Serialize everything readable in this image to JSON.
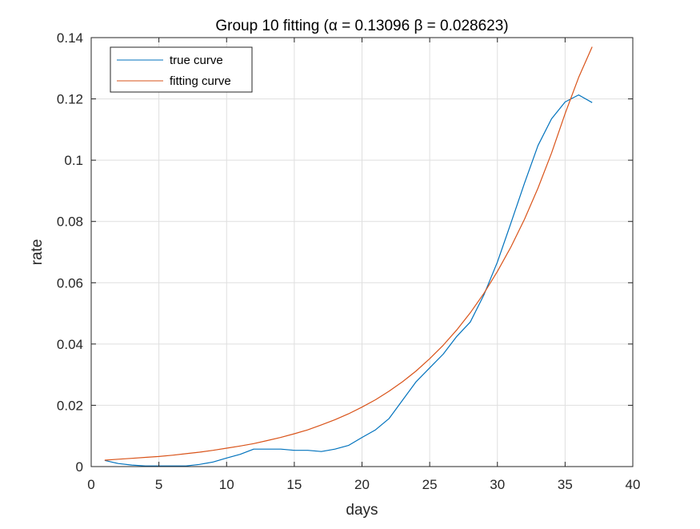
{
  "chart_data": {
    "type": "line",
    "title": "Group 10 fitting (α = 0.13096 β = 0.028623)",
    "xlabel": "days",
    "ylabel": "rate",
    "xlim": [
      0,
      40
    ],
    "ylim": [
      0,
      0.14
    ],
    "xticks": [
      0,
      5,
      10,
      15,
      20,
      25,
      30,
      35,
      40
    ],
    "yticks": [
      0,
      0.02,
      0.04,
      0.06,
      0.08,
      0.1,
      0.12,
      0.14
    ],
    "xtick_labels": [
      "0",
      "5",
      "10",
      "15",
      "20",
      "25",
      "30",
      "35",
      "40"
    ],
    "ytick_labels": [
      "0",
      "0.02",
      "0.04",
      "0.06",
      "0.08",
      "0.1",
      "0.12",
      "0.14"
    ],
    "grid": true,
    "legend": {
      "placement": "top-left"
    },
    "series": [
      {
        "name": "true curve",
        "color": "#0072BD",
        "x": [
          1,
          2,
          3,
          4,
          5,
          6,
          7,
          8,
          9,
          10,
          11,
          12,
          13,
          14,
          15,
          16,
          17,
          18,
          19,
          20,
          21,
          22,
          23,
          24,
          25,
          26,
          27,
          28,
          29,
          30,
          31,
          32,
          33,
          34,
          35,
          36,
          37
        ],
        "y": [
          0.002,
          0.001,
          0.0005,
          0.0002,
          0.0002,
          0.0002,
          0.0002,
          0.0007,
          0.0015,
          0.0028,
          0.004,
          0.0057,
          0.0057,
          0.0057,
          0.0053,
          0.0053,
          0.0049,
          0.0057,
          0.0069,
          0.0095,
          0.012,
          0.0157,
          0.0217,
          0.0277,
          0.0322,
          0.0367,
          0.0425,
          0.0472,
          0.056,
          0.0668,
          0.0795,
          0.0925,
          0.1048,
          0.1135,
          0.119,
          0.1213,
          0.1188
        ]
      },
      {
        "name": "fitting curve",
        "color": "#D95319",
        "x": [
          1,
          2,
          3,
          4,
          5,
          6,
          7,
          8,
          9,
          10,
          11,
          12,
          13,
          14,
          15,
          16,
          17,
          18,
          19,
          20,
          21,
          22,
          23,
          24,
          25,
          26,
          27,
          28,
          29,
          30,
          31,
          32,
          33,
          34,
          35,
          36,
          37
        ],
        "y": [
          0.0021,
          0.0024,
          0.0027,
          0.003,
          0.0033,
          0.0037,
          0.0042,
          0.0047,
          0.0053,
          0.006,
          0.0067,
          0.0075,
          0.0085,
          0.0095,
          0.0107,
          0.012,
          0.0136,
          0.0153,
          0.0172,
          0.0194,
          0.0218,
          0.0246,
          0.0277,
          0.0312,
          0.0352,
          0.0396,
          0.0446,
          0.0502,
          0.0565,
          0.0637,
          0.0717,
          0.0807,
          0.0909,
          0.1023,
          0.1152,
          0.127,
          0.137
        ]
      }
    ]
  }
}
